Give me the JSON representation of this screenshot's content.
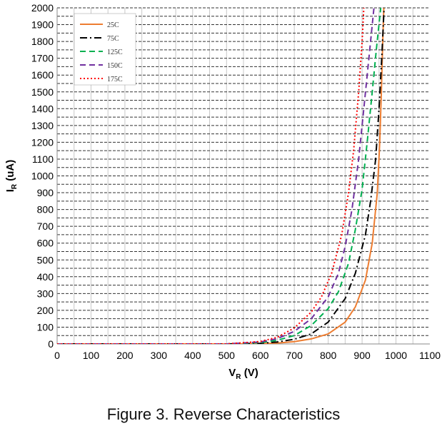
{
  "chart_data": {
    "type": "line",
    "title": "",
    "xlabel": "V",
    "xlabel_sub": "R",
    "xlabel_unit": " (V)",
    "ylabel": "I",
    "ylabel_sub": "R",
    "ylabel_unit": " (uA)",
    "xlim": [
      0,
      1100
    ],
    "ylim": [
      0,
      2000
    ],
    "xticks": [
      0,
      100,
      200,
      300,
      400,
      500,
      600,
      700,
      800,
      900,
      1000,
      1100
    ],
    "yticks": [
      0,
      100,
      200,
      300,
      400,
      500,
      600,
      700,
      800,
      900,
      1000,
      1100,
      1200,
      1300,
      1400,
      1500,
      1600,
      1700,
      1800,
      1900,
      2000
    ],
    "grid": true,
    "legend_position": "top-left",
    "series": [
      {
        "name": "25C",
        "color": "#ED7D31",
        "dash": "solid",
        "points": [
          [
            0,
            0
          ],
          [
            500,
            0
          ],
          [
            600,
            2
          ],
          [
            650,
            5
          ],
          [
            700,
            14
          ],
          [
            750,
            30
          ],
          [
            800,
            60
          ],
          [
            850,
            130
          ],
          [
            880,
            220
          ],
          [
            910,
            380
          ],
          [
            930,
            600
          ],
          [
            945,
            900
          ],
          [
            952,
            1200
          ],
          [
            957,
            1500
          ],
          [
            961,
            1800
          ],
          [
            964,
            2000
          ]
        ]
      },
      {
        "name": "75C",
        "color": "#000000",
        "dash": "dashdot",
        "points": [
          [
            0,
            0
          ],
          [
            500,
            0
          ],
          [
            600,
            4
          ],
          [
            650,
            12
          ],
          [
            700,
            28
          ],
          [
            750,
            60
          ],
          [
            800,
            130
          ],
          [
            850,
            270
          ],
          [
            880,
            420
          ],
          [
            910,
            650
          ],
          [
            925,
            850
          ],
          [
            940,
            1100
          ],
          [
            950,
            1400
          ],
          [
            958,
            1700
          ],
          [
            965,
            2000
          ]
        ]
      },
      {
        "name": "125C",
        "color": "#00B050",
        "dash": "dashed",
        "points": [
          [
            0,
            0
          ],
          [
            500,
            0
          ],
          [
            600,
            8
          ],
          [
            650,
            22
          ],
          [
            700,
            50
          ],
          [
            750,
            110
          ],
          [
            800,
            210
          ],
          [
            830,
            310
          ],
          [
            860,
            480
          ],
          [
            880,
            680
          ],
          [
            900,
            920
          ],
          [
            915,
            1200
          ],
          [
            930,
            1500
          ],
          [
            942,
            1750
          ],
          [
            955,
            2000
          ]
        ]
      },
      {
        "name": "150C",
        "color": "#7030A0",
        "dash": "dashed",
        "points": [
          [
            0,
            0
          ],
          [
            500,
            0
          ],
          [
            600,
            12
          ],
          [
            650,
            32
          ],
          [
            700,
            75
          ],
          [
            750,
            150
          ],
          [
            800,
            280
          ],
          [
            830,
            420
          ],
          [
            850,
            580
          ],
          [
            870,
            800
          ],
          [
            890,
            1100
          ],
          [
            905,
            1400
          ],
          [
            920,
            1700
          ],
          [
            935,
            2000
          ]
        ]
      },
      {
        "name": "175C",
        "color": "#FF0000",
        "dash": "dotted",
        "points": [
          [
            0,
            0
          ],
          [
            500,
            0
          ],
          [
            600,
            15
          ],
          [
            650,
            40
          ],
          [
            700,
            95
          ],
          [
            750,
            190
          ],
          [
            780,
            280
          ],
          [
            810,
            420
          ],
          [
            840,
            650
          ],
          [
            860,
            900
          ],
          [
            875,
            1150
          ],
          [
            890,
            1500
          ],
          [
            900,
            1800
          ],
          [
            905,
            2000
          ]
        ]
      }
    ]
  },
  "caption": "Figure 3. Reverse Characteristics"
}
